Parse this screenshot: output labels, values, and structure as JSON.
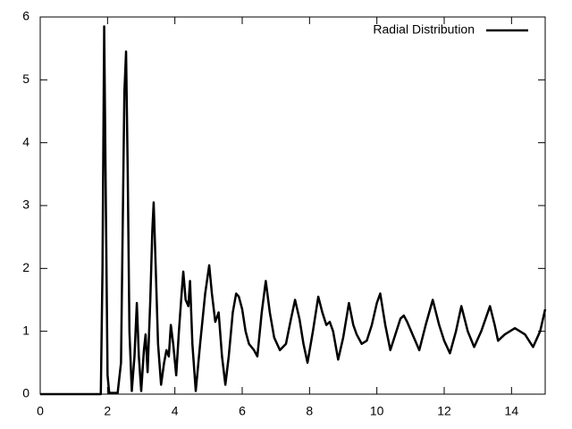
{
  "chart_data": {
    "type": "line",
    "x": [
      0,
      1.8,
      1.85,
      1.9,
      1.95,
      2.0,
      2.05,
      2.3,
      2.4,
      2.5,
      2.55,
      2.6,
      2.65,
      2.72,
      2.8,
      2.87,
      2.93,
      3.0,
      3.08,
      3.13,
      3.19,
      3.27,
      3.33,
      3.37,
      3.42,
      3.5,
      3.59,
      3.68,
      3.75,
      3.82,
      3.88,
      3.95,
      4.04,
      4.12,
      4.2,
      4.25,
      4.32,
      4.4,
      4.45,
      4.52,
      4.62,
      4.75,
      4.9,
      5.02,
      5.1,
      5.2,
      5.3,
      5.4,
      5.5,
      5.6,
      5.72,
      5.82,
      5.9,
      6.0,
      6.1,
      6.2,
      6.35,
      6.45,
      6.58,
      6.7,
      6.82,
      6.95,
      7.12,
      7.3,
      7.45,
      7.57,
      7.7,
      7.82,
      7.94,
      8.1,
      8.26,
      8.38,
      8.5,
      8.6,
      8.7,
      8.85,
      9.0,
      9.17,
      9.3,
      9.4,
      9.55,
      9.7,
      9.85,
      10.0,
      10.1,
      10.25,
      10.4,
      10.55,
      10.7,
      10.8,
      10.9,
      11.1,
      11.26,
      11.45,
      11.66,
      11.85,
      12.0,
      12.17,
      12.35,
      12.51,
      12.7,
      12.89,
      13.1,
      13.36,
      13.5,
      13.6,
      13.8,
      14.1,
      14.4,
      14.64,
      14.85,
      15.0
    ],
    "series": [
      {
        "name": "Radial Distribution",
        "color": "#000000",
        "values": [
          0,
          0,
          2,
          5.85,
          3,
          0.3,
          0.02,
          0.02,
          0.5,
          4.8,
          5.45,
          3.5,
          1,
          0.05,
          0.6,
          1.45,
          0.6,
          0.05,
          0.7,
          0.95,
          0.35,
          1.5,
          2.6,
          3.05,
          2.2,
          0.8,
          0.15,
          0.5,
          0.7,
          0.6,
          1.1,
          0.8,
          0.3,
          1.0,
          1.6,
          1.95,
          1.5,
          1.4,
          1.8,
          0.8,
          0.05,
          0.8,
          1.6,
          2.05,
          1.6,
          1.15,
          1.3,
          0.6,
          0.15,
          0.6,
          1.3,
          1.6,
          1.55,
          1.35,
          1.0,
          0.8,
          0.7,
          0.6,
          1.3,
          1.8,
          1.3,
          0.9,
          0.7,
          0.8,
          1.2,
          1.5,
          1.2,
          0.8,
          0.5,
          1.0,
          1.55,
          1.3,
          1.1,
          1.15,
          1.0,
          0.55,
          0.9,
          1.45,
          1.1,
          0.95,
          0.8,
          0.85,
          1.1,
          1.45,
          1.6,
          1.1,
          0.7,
          0.95,
          1.2,
          1.25,
          1.15,
          0.9,
          0.7,
          1.1,
          1.5,
          1.1,
          0.85,
          0.65,
          1.0,
          1.4,
          1.0,
          0.75,
          1.0,
          1.4,
          1.1,
          0.85,
          0.95,
          1.05,
          0.95,
          0.75,
          1.0,
          1.35
        ]
      }
    ],
    "xlim": [
      0,
      15
    ],
    "xticks": [
      0,
      2,
      4,
      6,
      8,
      10,
      12,
      14
    ],
    "ylim": [
      0,
      6
    ],
    "yticks": [
      0,
      1,
      2,
      3,
      4,
      5,
      6
    ],
    "legend": "top-right"
  }
}
